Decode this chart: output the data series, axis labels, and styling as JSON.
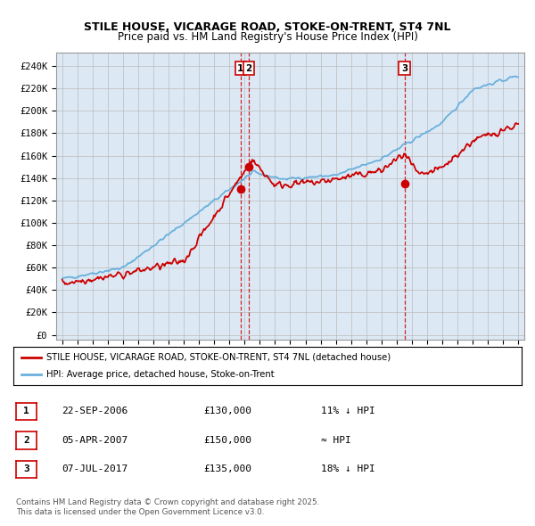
{
  "title_line1": "STILE HOUSE, VICARAGE ROAD, STOKE-ON-TRENT, ST4 7NL",
  "title_line2": "Price paid vs. HM Land Registry's House Price Index (HPI)",
  "yticks": [
    0,
    20000,
    40000,
    60000,
    80000,
    100000,
    120000,
    140000,
    160000,
    180000,
    200000,
    220000,
    240000
  ],
  "ytick_labels": [
    "£0",
    "£20K",
    "£40K",
    "£60K",
    "£80K",
    "£100K",
    "£120K",
    "£140K",
    "£160K",
    "£180K",
    "£200K",
    "£220K",
    "£240K"
  ],
  "ylim": [
    -4000,
    252000
  ],
  "xlim_start": 1994.6,
  "xlim_end": 2025.4,
  "hpi_color": "#6ab0dc",
  "price_color": "#cc0000",
  "annotation_box_color": "#cc0000",
  "dashed_line_color": "#cc0000",
  "chart_bg_color": "#dce9f5",
  "sale1_date": 2006.73,
  "sale1_price": 130000,
  "sale1_label": "1",
  "sale2_date": 2007.26,
  "sale2_price": 150000,
  "sale2_label": "2",
  "sale3_date": 2017.51,
  "sale3_price": 135000,
  "sale3_label": "3",
  "legend_line1": "STILE HOUSE, VICARAGE ROAD, STOKE-ON-TRENT, ST4 7NL (detached house)",
  "legend_line2": "HPI: Average price, detached house, Stoke-on-Trent",
  "table_data": [
    [
      "1",
      "22-SEP-2006",
      "£130,000",
      "11% ↓ HPI"
    ],
    [
      "2",
      "05-APR-2007",
      "£150,000",
      "≈ HPI"
    ],
    [
      "3",
      "07-JUL-2017",
      "£135,000",
      "18% ↓ HPI"
    ]
  ],
  "footnote": "Contains HM Land Registry data © Crown copyright and database right 2025.\nThis data is licensed under the Open Government Licence v3.0.",
  "background_color": "#ffffff",
  "grid_color": "#bbbbbb"
}
